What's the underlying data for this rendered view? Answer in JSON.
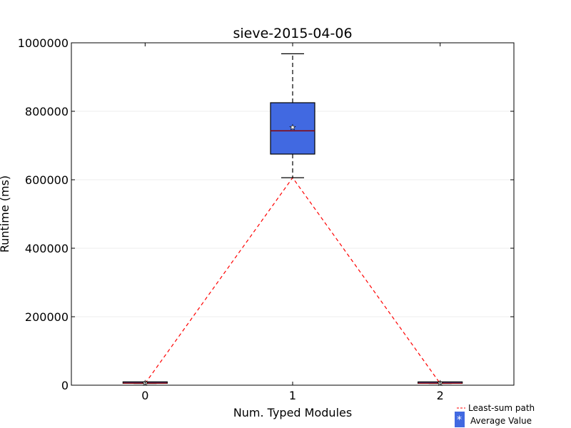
{
  "chart_data": {
    "type": "box",
    "title": "sieve-2015-04-06",
    "xlabel": "Num. Typed Modules",
    "ylabel": "Runtime (ms)",
    "xlim": [
      -0.5,
      2.5
    ],
    "ylim": [
      0,
      1000000
    ],
    "x_ticks": [
      "0",
      "1",
      "2"
    ],
    "y_ticks": [
      "0",
      "200000",
      "400000",
      "600000",
      "800000",
      "1000000"
    ],
    "grid": "horizontal",
    "box_color": "#4169e1",
    "median_color": "#8b0000",
    "boxes": [
      {
        "x": 0,
        "whisker_low": 5200,
        "q1": 5600,
        "median": 5900,
        "q3": 6200,
        "whisker_high": 6600,
        "mean": 5900
      },
      {
        "x": 1,
        "whisker_low": 606000,
        "q1": 675000,
        "median": 743000,
        "q3": 825000,
        "whisker_high": 968000,
        "mean": 753000
      },
      {
        "x": 2,
        "whisker_low": 5100,
        "q1": 5500,
        "median": 5800,
        "q3": 6100,
        "whisker_high": 6500,
        "mean": 5800
      }
    ],
    "least_sum_path": {
      "x": [
        0,
        1,
        2
      ],
      "y": [
        5200,
        606000,
        5100
      ],
      "color": "#ff0000"
    },
    "legend": {
      "position": "bottom-right",
      "entries": [
        {
          "label": "Least-sum path",
          "marker": "dashed-line",
          "color": "#ff0000"
        },
        {
          "label": "Average Value",
          "marker": "star-on-box",
          "color": "#4169e1"
        }
      ]
    }
  }
}
